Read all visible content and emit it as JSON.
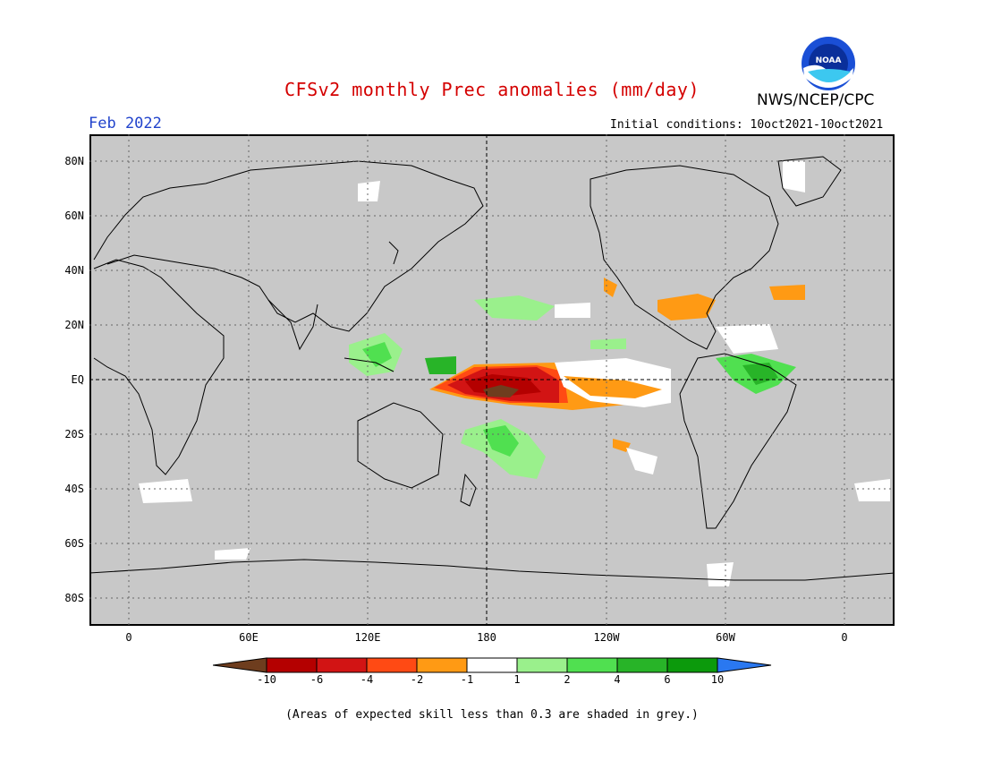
{
  "header": {
    "title": "CFSv2 monthly Prec anomalies (mm/day)",
    "month": "Feb 2022",
    "initial_conditions": "Initial conditions: 10oct2021-10oct2021",
    "agency": "NWS/NCEP/CPC",
    "logo_text": "NOAA"
  },
  "axes": {
    "lat_labels": [
      "80N",
      "60N",
      "40N",
      "20N",
      "EQ",
      "20S",
      "40S",
      "60S",
      "80S"
    ],
    "lon_labels": [
      "0",
      "60E",
      "120E",
      "180",
      "120W",
      "60W",
      "0"
    ]
  },
  "colorbar": {
    "labels": [
      "-10",
      "-6",
      "-4",
      "-2",
      "-1",
      "1",
      "2",
      "4",
      "6",
      "10"
    ],
    "colors": [
      "#6e3d1e",
      "#b40000",
      "#d21414",
      "#ff4a14",
      "#ff9a14",
      "#ffffff",
      "#9af08c",
      "#50e050",
      "#28b428",
      "#0c9a0c",
      "#2a78f0"
    ]
  },
  "legend_note": "(Areas of expected skill less than 0.3 are shaded in grey.)",
  "colors": {
    "land_background": "#c8c8c8",
    "title": "#d40000",
    "month": "#2244cc"
  }
}
